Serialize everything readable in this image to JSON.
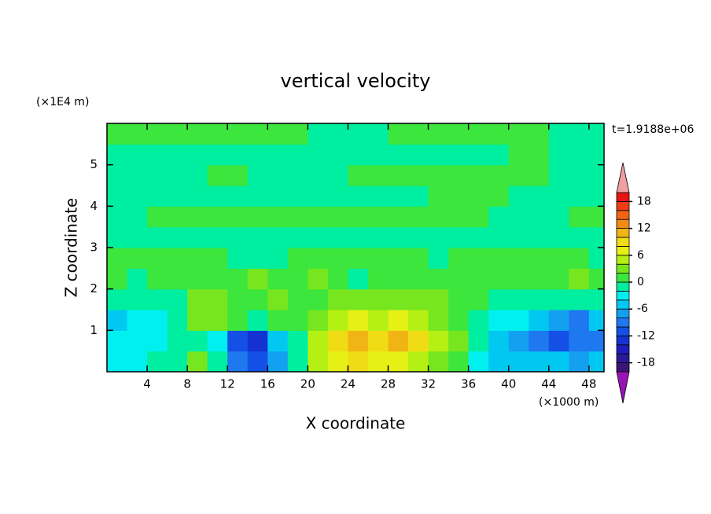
{
  "chart_data": {
    "type": "contour",
    "title": "vertical velocity",
    "xlabel": "X coordinate",
    "ylabel": "Z coordinate",
    "x_units": "(×1000 m)",
    "y_units": "(×1E4 m)",
    "time_label": "t=1.9188e+06",
    "xlim": [
      0,
      49.5
    ],
    "ylim": [
      0,
      6
    ],
    "xticks": [
      4,
      8,
      12,
      16,
      20,
      24,
      28,
      32,
      36,
      40,
      44,
      48
    ],
    "yticks": [
      1,
      2,
      3,
      4,
      5
    ],
    "x": [
      1,
      3,
      5,
      7,
      9,
      11,
      13,
      15,
      17,
      19,
      21,
      23,
      25,
      27,
      29,
      31,
      33,
      35,
      37,
      39,
      41,
      43,
      45,
      47,
      49
    ],
    "y": [
      0.25,
      0.75,
      1.25,
      1.75,
      2.25,
      2.75,
      3.25,
      3.75,
      4.25,
      4.75,
      5.25,
      5.75
    ],
    "z": [
      [
        -3,
        -3,
        -1,
        -1,
        3,
        -1,
        -9,
        -11,
        -7,
        -1,
        5,
        7,
        9,
        7,
        7,
        5,
        3,
        1,
        -3,
        -5,
        -5,
        -5,
        -5,
        -7,
        -5
      ],
      [
        -3,
        -3,
        -3,
        -1,
        -1,
        -3,
        -11,
        -13,
        -5,
        -1,
        5,
        9,
        11,
        9,
        11,
        9,
        5,
        3,
        -1,
        -5,
        -7,
        -9,
        -11,
        -9,
        -9
      ],
      [
        -5,
        -3,
        -3,
        -1,
        3,
        3,
        1,
        -1,
        1,
        1,
        3,
        5,
        7,
        5,
        7,
        5,
        3,
        1,
        -1,
        -3,
        -3,
        -5,
        -7,
        -9,
        -5
      ],
      [
        -1,
        -1,
        -1,
        -1,
        3,
        3,
        1,
        1,
        3,
        1,
        1,
        3,
        3,
        3,
        3,
        3,
        3,
        1,
        1,
        -1,
        -1,
        -1,
        -1,
        -1,
        -1
      ],
      [
        1,
        -1,
        1,
        1,
        1,
        1,
        1,
        3,
        1,
        1,
        3,
        1,
        -1,
        1,
        1,
        1,
        1,
        1,
        1,
        1,
        1,
        1,
        1,
        3,
        1
      ],
      [
        1,
        1,
        1,
        1,
        1,
        1,
        -1,
        -1,
        -1,
        1,
        1,
        1,
        1,
        1,
        1,
        1,
        -1,
        1,
        1,
        1,
        1,
        1,
        1,
        1,
        -1
      ],
      [
        -1,
        -1,
        -1,
        -1,
        -1,
        -1,
        -1,
        -1,
        -1,
        -1,
        -1,
        -1,
        -1,
        -1,
        -1,
        -1,
        -1,
        -1,
        -1,
        -1,
        -1,
        -1,
        -1,
        -1,
        -1
      ],
      [
        -1,
        -1,
        1,
        1,
        1,
        1,
        1,
        1,
        1,
        1,
        1,
        1,
        1,
        1,
        1,
        1,
        1,
        1,
        1,
        -1,
        -1,
        -1,
        -1,
        1,
        1
      ],
      [
        -1,
        -1,
        -1,
        -1,
        -1,
        -1,
        -1,
        -1,
        -1,
        -1,
        -1,
        -1,
        -1,
        -1,
        -1,
        -1,
        1,
        1,
        1,
        1,
        -1,
        -1,
        -1,
        -1,
        -1
      ],
      [
        -1,
        -1,
        -1,
        -1,
        -1,
        1,
        1,
        -1,
        -1,
        -1,
        -1,
        -1,
        1,
        1,
        1,
        1,
        1,
        1,
        1,
        1,
        1,
        1,
        -1,
        -1,
        -1
      ],
      [
        -1,
        -1,
        -1,
        -1,
        -1,
        -1,
        -1,
        -1,
        -1,
        -1,
        -1,
        -1,
        -1,
        -1,
        -1,
        -1,
        -1,
        -1,
        -1,
        -1,
        1,
        1,
        -1,
        -1,
        -1
      ],
      [
        1,
        1,
        1,
        1,
        1,
        1,
        1,
        1,
        1,
        1,
        -1,
        -1,
        -1,
        -1,
        1,
        1,
        1,
        1,
        1,
        1,
        1,
        1,
        -1,
        -1,
        -1
      ]
    ],
    "levels": [
      -20,
      -18,
      -16,
      -14,
      -12,
      -10,
      -8,
      -6,
      -4,
      -2,
      0,
      2,
      4,
      6,
      8,
      10,
      12,
      14,
      16,
      18,
      20
    ],
    "colors": [
      "#3c1478",
      "#2a1a96",
      "#1e1ebe",
      "#1432d2",
      "#1450e6",
      "#1e78f0",
      "#14a0f0",
      "#00c8f0",
      "#00f0f0",
      "#00eea0",
      "#3ce63c",
      "#78e61e",
      "#b4f014",
      "#e6f014",
      "#f0dc14",
      "#f0b414",
      "#f08c14",
      "#f06414",
      "#f03c14",
      "#e61414"
    ],
    "under_color": "#9614b4",
    "over_color": "#f0a0a0",
    "colorbar_ticks": [
      -18,
      -12,
      -6,
      0,
      6,
      12,
      18
    ]
  }
}
